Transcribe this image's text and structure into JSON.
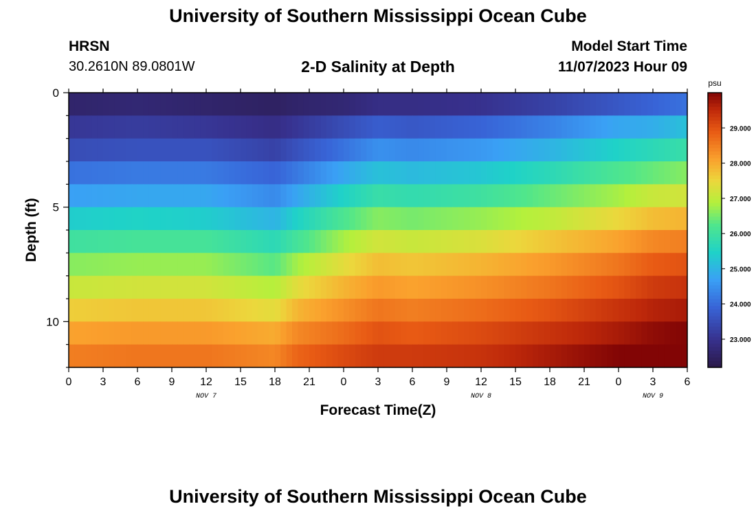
{
  "header": {
    "title": "University of Southern Mississippi Ocean Cube",
    "station_name": "HRSN",
    "station_coords": "30.2610N  89.0801W",
    "plot_title": "2-D Salinity at Depth",
    "model_start_label": "Model Start Time",
    "model_start_value": "11/07/2023 Hour 09"
  },
  "footer": {
    "title": "University of Southern Mississippi Ocean Cube"
  },
  "chart_data": {
    "type": "heatmap",
    "title": "2-D Salinity at Depth",
    "xlabel": "Forecast Time(Z)",
    "ylabel": "Depth (ft)",
    "x_ticks": [
      "0",
      "3",
      "6",
      "9",
      "12",
      "15",
      "18",
      "21",
      "0",
      "3",
      "6",
      "9",
      "12",
      "15",
      "18",
      "21",
      "0",
      "3",
      "6"
    ],
    "x_date_labels": [
      {
        "label": "NOV 7",
        "at_tick": 4
      },
      {
        "label": "NOV 8",
        "at_tick": 12
      },
      {
        "label": "NOV 9",
        "at_tick": 17
      }
    ],
    "x_range_hours": [
      0,
      54
    ],
    "y_ticks": [
      "0",
      "5",
      "10"
    ],
    "y_range_ft": [
      0,
      12
    ],
    "rows": 12,
    "time_hours": [
      0,
      6,
      12,
      18,
      20,
      24,
      27,
      30,
      36,
      42,
      48,
      51,
      54
    ],
    "salinity_psu": [
      [
        22.6,
        22.7,
        22.6,
        22.5,
        22.6,
        22.7,
        22.9,
        22.9,
        23.0,
        23.3,
        23.7,
        23.9,
        24.1
      ],
      [
        23.1,
        23.2,
        23.1,
        22.9,
        23.1,
        23.5,
        23.8,
        23.7,
        23.9,
        24.3,
        24.8,
        24.9,
        25.2
      ],
      [
        23.5,
        23.6,
        23.6,
        23.3,
        23.6,
        24.1,
        24.5,
        24.4,
        24.6,
        25.0,
        25.5,
        25.7,
        25.9
      ],
      [
        24.1,
        24.2,
        24.2,
        23.9,
        24.2,
        24.8,
        25.2,
        25.1,
        25.3,
        25.7,
        26.2,
        26.4,
        26.6
      ],
      [
        24.7,
        24.8,
        24.8,
        24.4,
        24.8,
        25.5,
        25.9,
        25.8,
        26.0,
        26.4,
        26.8,
        27.1,
        27.2
      ],
      [
        25.4,
        25.5,
        25.4,
        25.0,
        25.5,
        26.2,
        26.6,
        26.5,
        26.7,
        27.0,
        27.5,
        27.8,
        27.9
      ],
      [
        26.0,
        26.1,
        26.1,
        25.7,
        26.1,
        26.8,
        27.2,
        27.1,
        27.3,
        27.7,
        28.1,
        28.4,
        28.5
      ],
      [
        26.6,
        26.7,
        26.7,
        26.3,
        26.8,
        27.4,
        27.8,
        27.7,
        27.9,
        28.2,
        28.6,
        28.9,
        29.0
      ],
      [
        27.1,
        27.2,
        27.2,
        26.9,
        27.4,
        27.9,
        28.2,
        28.1,
        28.3,
        28.6,
        29.0,
        29.3,
        29.4
      ],
      [
        27.6,
        27.7,
        27.7,
        27.4,
        27.9,
        28.3,
        28.6,
        28.5,
        28.7,
        29.0,
        29.4,
        29.6,
        29.7
      ],
      [
        28.1,
        28.2,
        28.2,
        28.0,
        28.4,
        28.7,
        29.0,
        28.9,
        29.1,
        29.4,
        29.7,
        29.9,
        30.0
      ],
      [
        28.5,
        28.6,
        28.6,
        28.4,
        28.8,
        29.1,
        29.3,
        29.3,
        29.4,
        29.7,
        30.0,
        30.2,
        30.2
      ]
    ],
    "colorbar": {
      "unit": "psu",
      "min": 22.2,
      "max": 30.0,
      "ticks": [
        "29.000",
        "28.000",
        "27.000",
        "26.000",
        "25.000",
        "24.000",
        "23.000"
      ]
    }
  }
}
